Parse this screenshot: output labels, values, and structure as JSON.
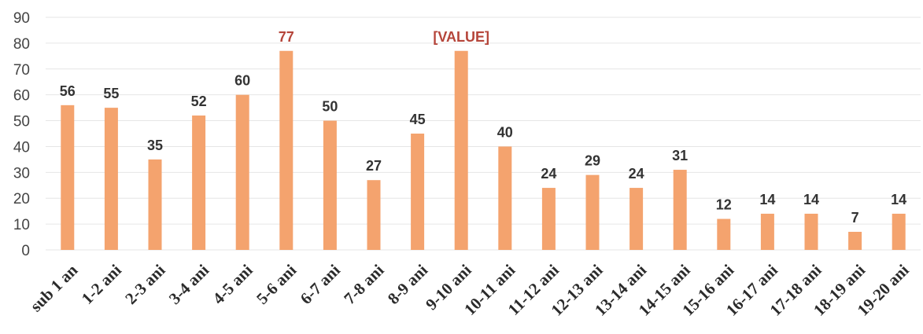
{
  "chart_data": {
    "type": "bar",
    "categories": [
      "sub 1 an",
      "1-2 ani",
      "2-3 ani",
      "3-4 ani",
      "4-5 ani",
      "5-6 ani",
      "6-7 ani",
      "7-8 ani",
      "8-9 ani",
      "9-10 ani",
      "10-11 ani",
      "11-12 ani",
      "12-13 ani",
      "13-14 ani",
      "14-15 ani",
      "15-16 ani",
      "16-17 ani",
      "17-18 ani",
      "18-19 ani",
      "19-20 ani"
    ],
    "values": [
      56,
      55,
      35,
      52,
      60,
      77,
      50,
      27,
      45,
      77,
      40,
      24,
      29,
      24,
      31,
      12,
      14,
      14,
      7,
      14
    ],
    "data_labels": [
      "56",
      "55",
      "35",
      "52",
      "60",
      "77",
      "50",
      "27",
      "45",
      "[VALUE]",
      "40",
      "24",
      "29",
      "24",
      "31",
      "12",
      "14",
      "14",
      "7",
      "14"
    ],
    "highlight_indices": [
      5,
      9
    ],
    "y_ticks": [
      0,
      10,
      20,
      30,
      40,
      50,
      60,
      70,
      80,
      90
    ],
    "ylim": [
      0,
      90
    ],
    "grid": true,
    "title": "",
    "xlabel": "",
    "ylabel": "",
    "colors": {
      "bar": "#f4a36e",
      "highlight_label": "#b5453a",
      "label": "#333333",
      "grid": "#e6e6e6"
    }
  }
}
